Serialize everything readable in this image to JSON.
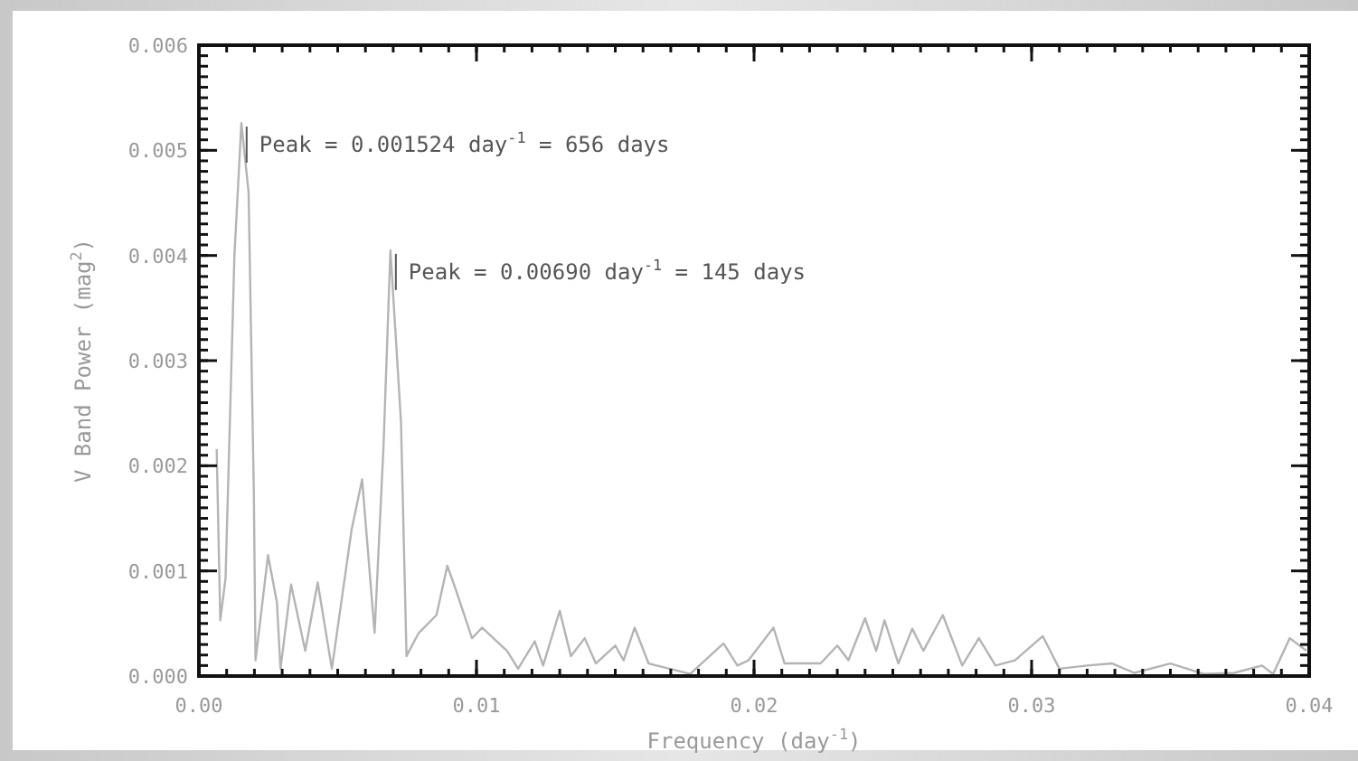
{
  "chart_data": {
    "type": "line",
    "xlabel": "Frequency (day$^{-1}$)",
    "ylabel": "V Band Power (mag$^{2}$)",
    "x": [
      0.00064,
      0.00077,
      0.00096,
      0.00128,
      0.00153,
      0.00179,
      0.00198,
      0.00204,
      0.00249,
      0.00281,
      0.00294,
      0.00332,
      0.00383,
      0.00428,
      0.00479,
      0.0055,
      0.00588,
      0.00633,
      0.00665,
      0.0069,
      0.00728,
      0.00748,
      0.00792,
      0.00856,
      0.00895,
      0.00927,
      0.00984,
      0.0102,
      0.0111,
      0.0115,
      0.0121,
      0.0124,
      0.013,
      0.0134,
      0.0139,
      0.0143,
      0.015,
      0.0153,
      0.0157,
      0.0162,
      0.0177,
      0.0189,
      0.0194,
      0.0198,
      0.0207,
      0.0211,
      0.0224,
      0.023,
      0.0234,
      0.024,
      0.0244,
      0.0247,
      0.0252,
      0.0257,
      0.0261,
      0.0268,
      0.0275,
      0.0281,
      0.0287,
      0.0294,
      0.0304,
      0.031,
      0.032,
      0.0329,
      0.0337,
      0.035,
      0.0362,
      0.0373,
      0.0383,
      0.0387,
      0.0393,
      0.0399
    ],
    "series": [
      {
        "color": "#b4b4b4",
        "values": [
          0.00216,
          0.00053,
          0.00093,
          0.004,
          0.00526,
          0.0046,
          0.00173,
          0.00015,
          0.00115,
          0.0007,
          7e-05,
          0.00087,
          0.00024,
          0.00089,
          7e-05,
          0.00139,
          0.00187,
          0.00041,
          0.00218,
          0.00405,
          0.00242,
          0.00019,
          0.00041,
          0.00058,
          0.00105,
          0.00081,
          0.00036,
          0.00046,
          0.00024,
          7e-05,
          0.00033,
          0.0001,
          0.00062,
          0.00019,
          0.00036,
          0.00012,
          0.00029,
          0.00015,
          0.00046,
          0.00012,
          2e-05,
          0.00031,
          0.0001,
          0.00015,
          0.00046,
          0.00012,
          0.00012,
          0.00029,
          0.00015,
          0.00055,
          0.00024,
          0.00053,
          0.00012,
          0.00045,
          0.00024,
          0.00058,
          0.0001,
          0.00036,
          0.0001,
          0.00015,
          0.00038,
          7e-05,
          0.0001,
          0.00012,
          3e-05,
          0.00012,
          2e-05,
          3e-05,
          0.0001,
          2e-05,
          0.00036,
          0.00024
        ]
      }
    ],
    "xlim": [
      0,
      0.04
    ],
    "ylim": [
      0,
      0.006
    ],
    "xticks": [
      {
        "value": 0,
        "label": "0.00"
      },
      0.01,
      0.02,
      0.03,
      {
        "value": 0.04,
        "label": "0.04"
      }
    ],
    "yticks": [
      {
        "value": 0,
        "label": "0.000"
      },
      0.001,
      0.002,
      0.003,
      0.004,
      0.005,
      {
        "value": 0.006,
        "label": "0.006"
      }
    ],
    "annotations": [
      {
        "text": "Peak = 0.001524 day$^{-1}$ = 656 days",
        "x": 0.001524,
        "y": 0.00526
      },
      {
        "text": "Peak = 0.00690 day$^{-1}$ = 145 days",
        "x": 0.0069,
        "y": 0.00405
      }
    ],
    "line_style": "solid",
    "marker": "none"
  }
}
